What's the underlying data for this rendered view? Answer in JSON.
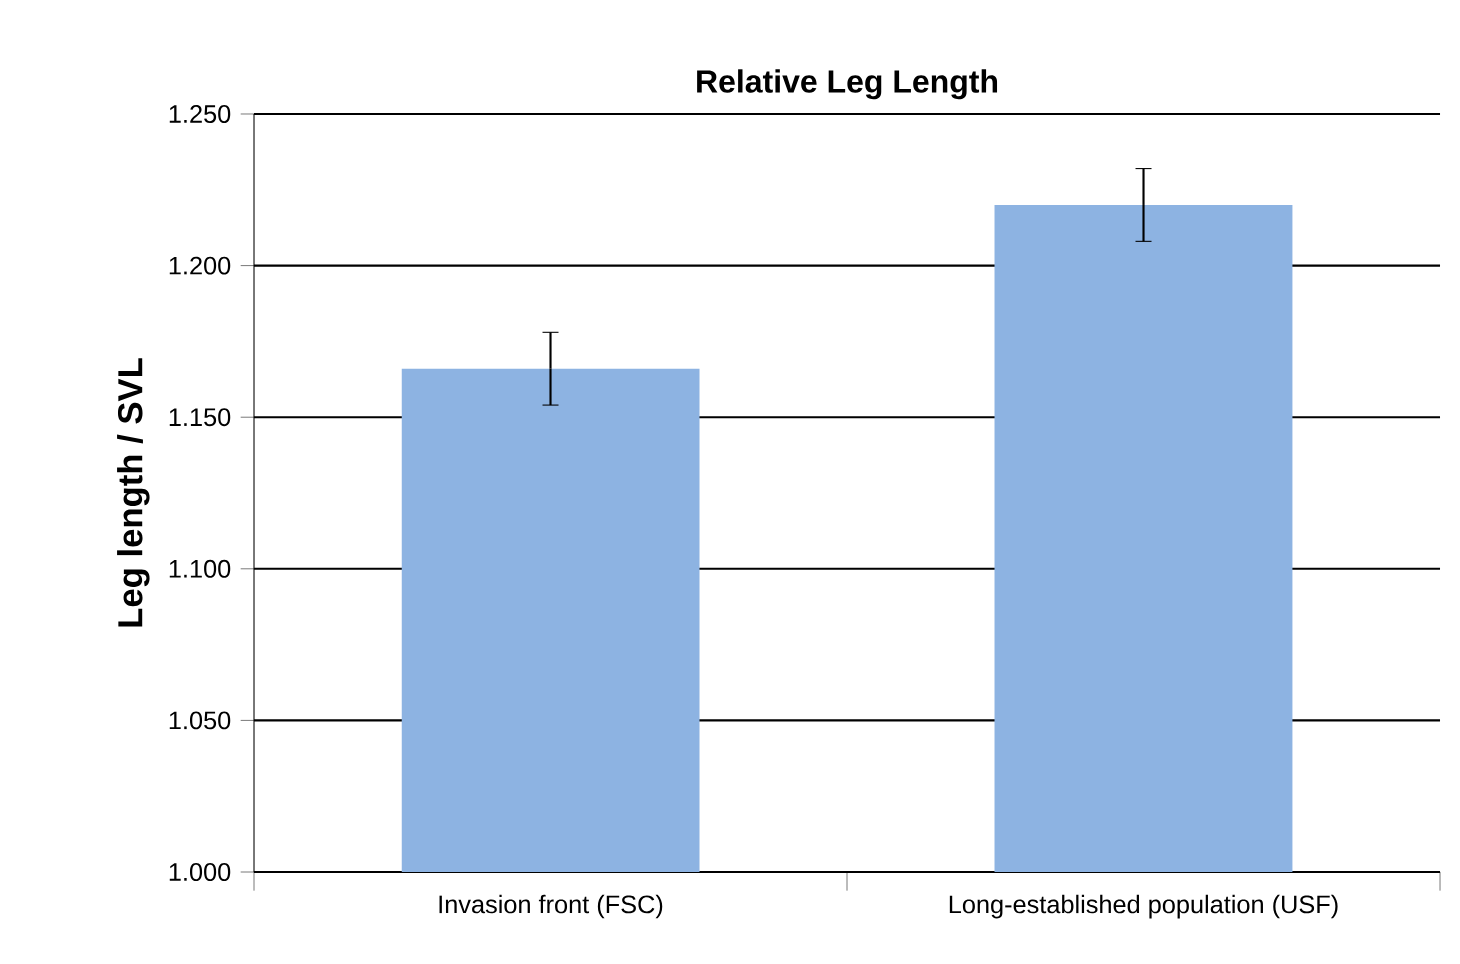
{
  "chart_data": {
    "type": "bar",
    "title": "Relative Leg Length",
    "ylabel": "Leg length / SVL",
    "categories": [
      "Invasion front (FSC)",
      "Long-established population (USF)"
    ],
    "values": [
      1.166,
      1.22
    ],
    "errors": [
      0.012,
      0.012
    ],
    "color": "#8db3e2",
    "ylim": [
      1.0,
      1.25
    ],
    "yticks": [
      {
        "value": 1.0,
        "label": "1.000"
      },
      {
        "value": 1.05,
        "label": "1.050"
      },
      {
        "value": 1.1,
        "label": "1.100"
      },
      {
        "value": 1.15,
        "label": "1.150"
      },
      {
        "value": 1.2,
        "label": "1.200"
      },
      {
        "value": 1.25,
        "label": "1.250"
      }
    ],
    "grid": "y"
  }
}
